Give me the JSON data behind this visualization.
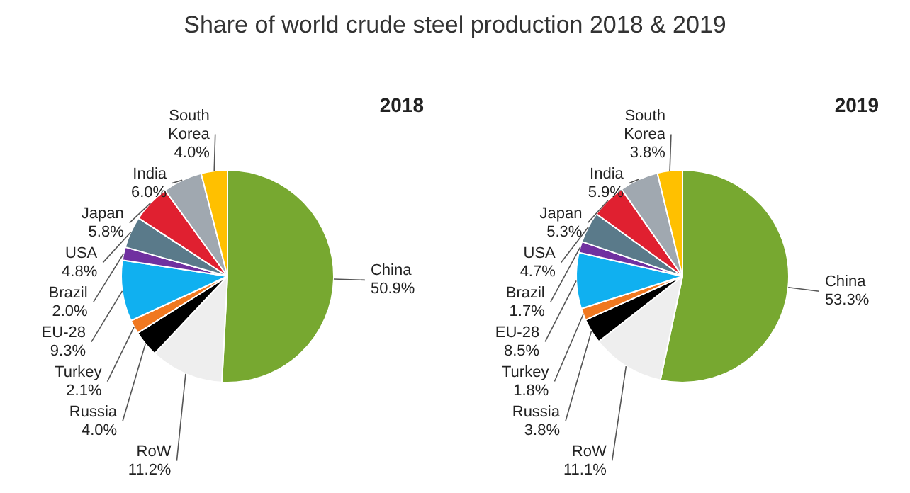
{
  "chart_data": [
    {
      "type": "pie",
      "title": "Share of world crude steel production 2018 & 2019",
      "subtitle": "2018",
      "categories": [
        "China",
        "RoW",
        "Russia",
        "Turkey",
        "EU-28",
        "Brazil",
        "USA",
        "Japan",
        "India",
        "South Korea"
      ],
      "values": [
        50.9,
        11.2,
        4.0,
        2.1,
        9.3,
        2.0,
        4.8,
        5.8,
        6.0,
        4.0
      ],
      "value_labels": [
        "50.9%",
        "11.2%",
        "4.0%",
        "2.1%",
        "9.3%",
        "2.0%",
        "4.8%",
        "5.8%",
        "6.0%",
        "4.0%"
      ],
      "colors": [
        "#77a830",
        "#eeeeee",
        "#000000",
        "#f07820",
        "#10b0f0",
        "#7030a0",
        "#5a7a8a",
        "#e02030",
        "#a0a8b0",
        "#ffc000"
      ],
      "legend": false
    },
    {
      "type": "pie",
      "subtitle": "2019",
      "categories": [
        "China",
        "RoW",
        "Russia",
        "Turkey",
        "EU-28",
        "Brazil",
        "USA",
        "Japan",
        "India",
        "South Korea"
      ],
      "values": [
        53.3,
        11.1,
        3.8,
        1.8,
        8.5,
        1.7,
        4.7,
        5.3,
        5.9,
        3.8
      ],
      "value_labels": [
        "53.3%",
        "11.1%",
        "3.8%",
        "1.8%",
        "8.5%",
        "1.7%",
        "4.7%",
        "5.3%",
        "5.9%",
        "3.8%"
      ],
      "colors": [
        "#77a830",
        "#eeeeee",
        "#000000",
        "#f07820",
        "#10b0f0",
        "#7030a0",
        "#5a7a8a",
        "#e02030",
        "#a0a8b0",
        "#ffc000"
      ],
      "legend": false
    }
  ]
}
